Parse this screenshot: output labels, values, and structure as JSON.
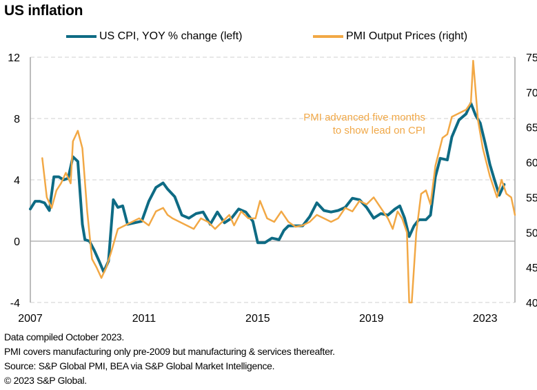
{
  "title": "US inflation",
  "legend": [
    {
      "label": "US CPI, YOY % change (left)",
      "color": "#0e6b84"
    },
    {
      "label": "PMI Output Prices (right)",
      "color": "#f2a845"
    }
  ],
  "annotation": [
    "PMI advanced five months",
    "to show lead on CPI"
  ],
  "footer": [
    "Data compiled October 2023.",
    "PMI covers manufacturing only pre-2009 but manufacturing & services thereafter.",
    "Source: S&P Global PMI, BEA via S&P Global Market Intelligence.",
    "© 2023 S&P Global."
  ],
  "chart_data": {
    "type": "line",
    "title": "US inflation",
    "xlabel": "",
    "ylabel_left": "US CPI, YOY % change",
    "ylabel_right": "PMI Output Prices",
    "x_ticks": [
      "2007",
      "2011",
      "2015",
      "2019",
      "2023"
    ],
    "x_range": [
      2007.0,
      2024.05
    ],
    "y_left_ticks": [
      "-4",
      "0",
      "4",
      "8",
      "12"
    ],
    "y_left_range": [
      -4,
      12
    ],
    "y_right_ticks": [
      "40",
      "45",
      "50",
      "55",
      "60",
      "65",
      "70",
      "75"
    ],
    "y_right_range": [
      40,
      75
    ],
    "grid": "horizontal dashed",
    "legend_position": "top",
    "series": [
      {
        "name": "US CPI, YOY % change (left)",
        "axis": "left",
        "color": "#0e6b84",
        "points": [
          [
            2007.0,
            2.1
          ],
          [
            2007.17,
            2.6
          ],
          [
            2007.33,
            2.6
          ],
          [
            2007.5,
            2.5
          ],
          [
            2007.67,
            2.0
          ],
          [
            2007.83,
            4.2
          ],
          [
            2008.0,
            4.2
          ],
          [
            2008.17,
            4.0
          ],
          [
            2008.33,
            4.1
          ],
          [
            2008.5,
            5.5
          ],
          [
            2008.67,
            5.2
          ],
          [
            2008.83,
            1.1
          ],
          [
            2008.92,
            0.1
          ],
          [
            2009.08,
            0.0
          ],
          [
            2009.25,
            -0.6
          ],
          [
            2009.42,
            -1.3
          ],
          [
            2009.58,
            -2.0
          ],
          [
            2009.75,
            -1.3
          ],
          [
            2009.92,
            2.7
          ],
          [
            2010.08,
            2.2
          ],
          [
            2010.25,
            2.3
          ],
          [
            2010.42,
            1.1
          ],
          [
            2010.67,
            1.2
          ],
          [
            2010.92,
            1.3
          ],
          [
            2011.17,
            2.6
          ],
          [
            2011.42,
            3.5
          ],
          [
            2011.67,
            3.8
          ],
          [
            2011.83,
            3.4
          ],
          [
            2012.08,
            2.9
          ],
          [
            2012.33,
            1.7
          ],
          [
            2012.58,
            1.5
          ],
          [
            2012.83,
            1.8
          ],
          [
            2013.08,
            1.9
          ],
          [
            2013.33,
            1.1
          ],
          [
            2013.58,
            1.9
          ],
          [
            2013.83,
            1.2
          ],
          [
            2014.08,
            1.5
          ],
          [
            2014.33,
            2.1
          ],
          [
            2014.58,
            1.9
          ],
          [
            2014.83,
            1.3
          ],
          [
            2015.0,
            -0.1
          ],
          [
            2015.25,
            -0.1
          ],
          [
            2015.5,
            0.2
          ],
          [
            2015.75,
            0.1
          ],
          [
            2015.92,
            0.7
          ],
          [
            2016.08,
            1.0
          ],
          [
            2016.33,
            1.0
          ],
          [
            2016.58,
            1.0
          ],
          [
            2016.83,
            1.6
          ],
          [
            2017.08,
            2.5
          ],
          [
            2017.33,
            2.0
          ],
          [
            2017.58,
            1.9
          ],
          [
            2017.83,
            2.0
          ],
          [
            2018.08,
            2.2
          ],
          [
            2018.33,
            2.8
          ],
          [
            2018.58,
            2.7
          ],
          [
            2018.83,
            2.2
          ],
          [
            2019.08,
            1.5
          ],
          [
            2019.33,
            1.8
          ],
          [
            2019.58,
            1.7
          ],
          [
            2019.83,
            2.1
          ],
          [
            2020.0,
            2.3
          ],
          [
            2020.17,
            1.5
          ],
          [
            2020.33,
            0.3
          ],
          [
            2020.5,
            1.0
          ],
          [
            2020.67,
            1.4
          ],
          [
            2020.92,
            1.4
          ],
          [
            2021.08,
            1.7
          ],
          [
            2021.25,
            4.2
          ],
          [
            2021.42,
            5.4
          ],
          [
            2021.67,
            5.3
          ],
          [
            2021.83,
            6.8
          ],
          [
            2022.08,
            7.9
          ],
          [
            2022.33,
            8.3
          ],
          [
            2022.5,
            9.0
          ],
          [
            2022.67,
            8.2
          ],
          [
            2022.83,
            7.7
          ],
          [
            2023.0,
            6.4
          ],
          [
            2023.17,
            5.0
          ],
          [
            2023.33,
            4.0
          ],
          [
            2023.5,
            3.0
          ],
          [
            2023.67,
            3.7
          ]
        ]
      },
      {
        "name": "PMI Output Prices (right)",
        "axis": "right",
        "color": "#f2a845",
        "points": [
          [
            2007.42,
            60.6
          ],
          [
            2007.58,
            55.0
          ],
          [
            2007.75,
            53.5
          ],
          [
            2007.92,
            56.0
          ],
          [
            2008.08,
            57.0
          ],
          [
            2008.25,
            58.5
          ],
          [
            2008.42,
            57.0
          ],
          [
            2008.5,
            63.0
          ],
          [
            2008.67,
            64.5
          ],
          [
            2008.83,
            62.0
          ],
          [
            2009.0,
            53.0
          ],
          [
            2009.17,
            46.2
          ],
          [
            2009.33,
            45.0
          ],
          [
            2009.5,
            43.5
          ],
          [
            2009.67,
            45.0
          ],
          [
            2009.83,
            47.0
          ],
          [
            2010.08,
            50.5
          ],
          [
            2010.33,
            51.0
          ],
          [
            2010.58,
            51.5
          ],
          [
            2010.83,
            52.0
          ],
          [
            2011.0,
            51.5
          ],
          [
            2011.17,
            51.0
          ],
          [
            2011.42,
            53.0
          ],
          [
            2011.67,
            53.5
          ],
          [
            2011.83,
            52.5
          ],
          [
            2012.0,
            52.0
          ],
          [
            2012.25,
            51.5
          ],
          [
            2012.5,
            51.0
          ],
          [
            2012.75,
            50.5
          ],
          [
            2013.0,
            52.0
          ],
          [
            2013.25,
            51.5
          ],
          [
            2013.5,
            50.5
          ],
          [
            2013.75,
            51.5
          ],
          [
            2014.0,
            52.5
          ],
          [
            2014.17,
            51.0
          ],
          [
            2014.42,
            53.0
          ],
          [
            2014.67,
            52.0
          ],
          [
            2014.92,
            52.0
          ],
          [
            2015.08,
            54.5
          ],
          [
            2015.33,
            52.0
          ],
          [
            2015.58,
            51.5
          ],
          [
            2015.83,
            53.0
          ],
          [
            2016.08,
            51.5
          ],
          [
            2016.33,
            50.8
          ],
          [
            2016.58,
            51.0
          ],
          [
            2016.83,
            51.5
          ],
          [
            2017.08,
            52.5
          ],
          [
            2017.33,
            52.0
          ],
          [
            2017.58,
            51.5
          ],
          [
            2017.83,
            52.0
          ],
          [
            2018.08,
            53.5
          ],
          [
            2018.33,
            53.0
          ],
          [
            2018.58,
            54.5
          ],
          [
            2018.83,
            54.0
          ],
          [
            2019.08,
            55.0
          ],
          [
            2019.33,
            53.5
          ],
          [
            2019.58,
            52.0
          ],
          [
            2019.75,
            50.5
          ],
          [
            2019.92,
            53.0
          ],
          [
            2020.08,
            52.0
          ],
          [
            2020.25,
            50.0
          ],
          [
            2020.33,
            40.0
          ],
          [
            2020.42,
            40.0
          ],
          [
            2020.58,
            50.0
          ],
          [
            2020.75,
            55.5
          ],
          [
            2020.92,
            56.0
          ],
          [
            2021.08,
            54.0
          ],
          [
            2021.25,
            59.5
          ],
          [
            2021.5,
            63.5
          ],
          [
            2021.67,
            64.0
          ],
          [
            2021.83,
            66.5
          ],
          [
            2022.08,
            67.0
          ],
          [
            2022.33,
            67.5
          ],
          [
            2022.5,
            68.5
          ],
          [
            2022.58,
            74.5
          ],
          [
            2022.75,
            66.0
          ],
          [
            2022.92,
            62.0
          ],
          [
            2023.17,
            58.0
          ],
          [
            2023.42,
            55.0
          ],
          [
            2023.58,
            57.5
          ],
          [
            2023.75,
            55.5
          ],
          [
            2023.92,
            55.0
          ],
          [
            2024.05,
            52.5
          ]
        ]
      }
    ]
  }
}
